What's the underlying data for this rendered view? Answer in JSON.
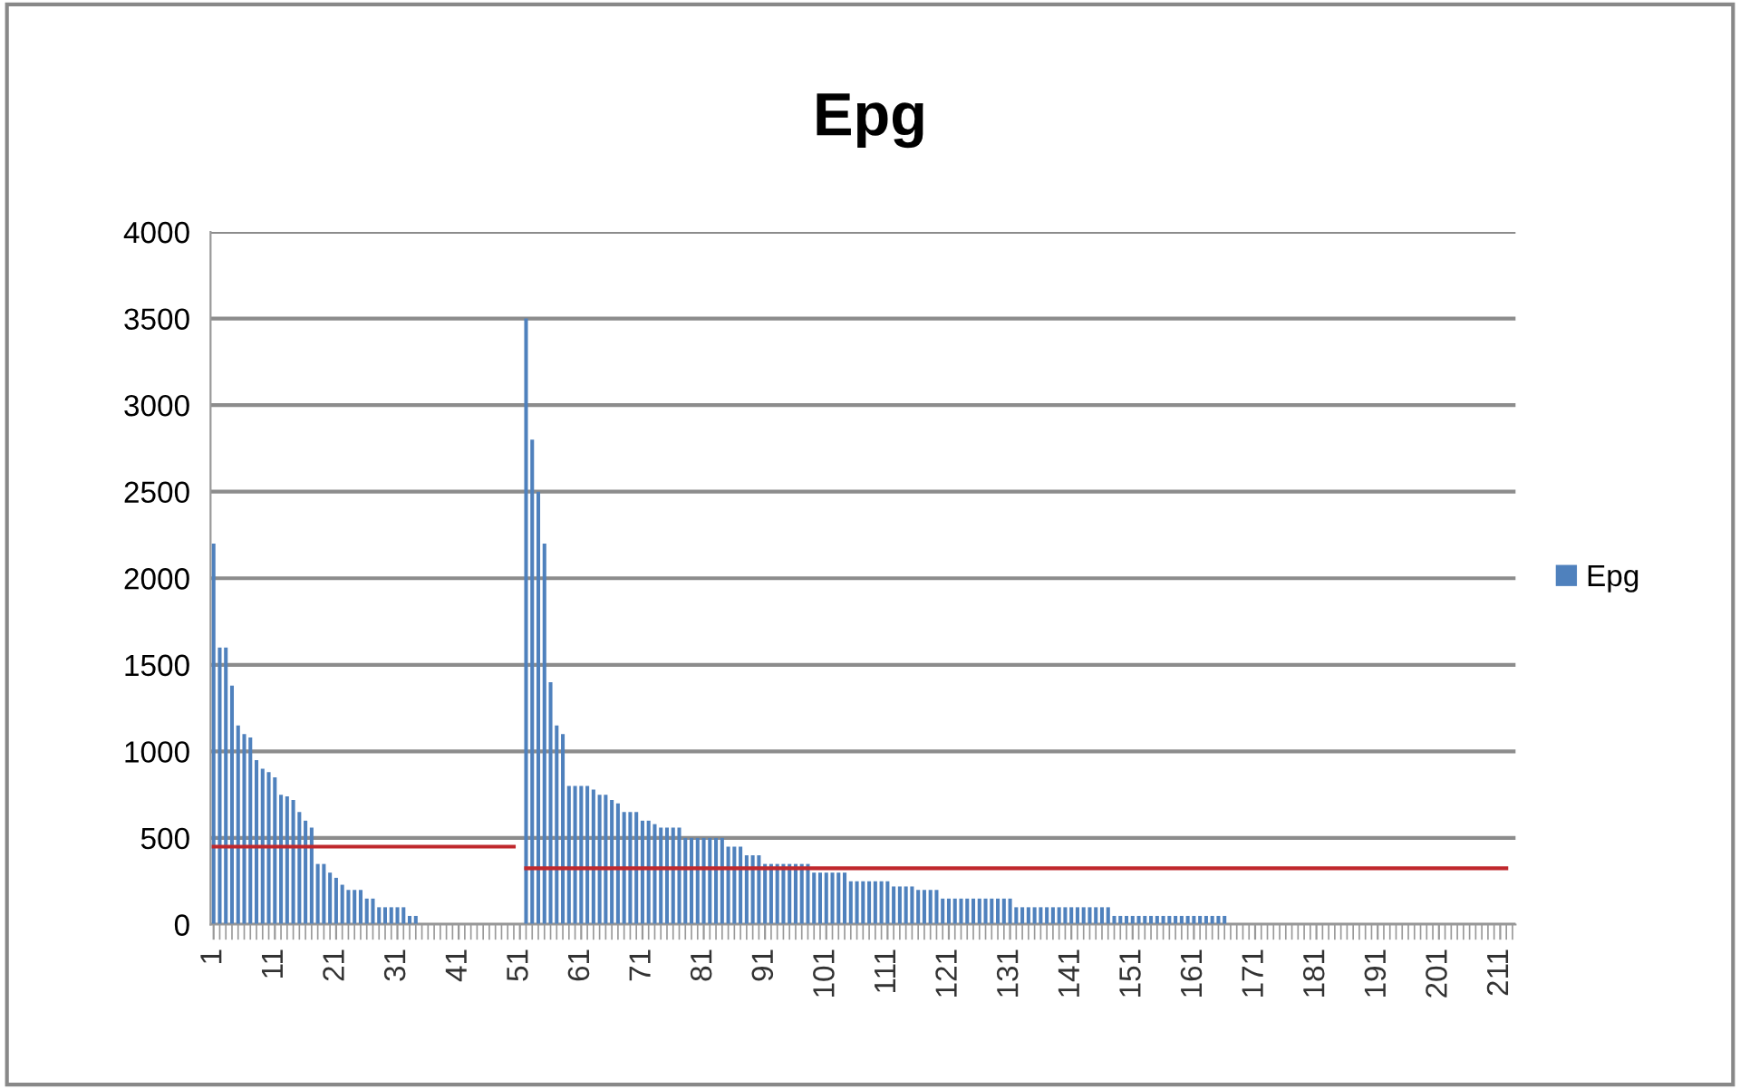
{
  "chart_data": {
    "type": "bar",
    "title": "Epg",
    "categories": [
      "1",
      null,
      null,
      null,
      null,
      null,
      null,
      null,
      null,
      null,
      "11",
      null,
      null,
      null,
      null,
      null,
      null,
      null,
      null,
      null,
      "21",
      null,
      null,
      null,
      null,
      null,
      null,
      null,
      null,
      null,
      "31",
      null,
      null,
      null,
      null,
      null,
      null,
      null,
      null,
      null,
      "41",
      null,
      null,
      null,
      null,
      null,
      null,
      null,
      null,
      null,
      "51",
      null,
      null,
      null,
      null,
      null,
      null,
      null,
      null,
      null,
      "61",
      null,
      null,
      null,
      null,
      null,
      null,
      null,
      null,
      null,
      "71",
      null,
      null,
      null,
      null,
      null,
      null,
      null,
      null,
      null,
      "81",
      null,
      null,
      null,
      null,
      null,
      null,
      null,
      null,
      null,
      "91",
      null,
      null,
      null,
      null,
      null,
      null,
      null,
      null,
      null,
      "101",
      null,
      null,
      null,
      null,
      null,
      null,
      null,
      null,
      null,
      "111",
      null,
      null,
      null,
      null,
      null,
      null,
      null,
      null,
      null,
      "121",
      null,
      null,
      null,
      null,
      null,
      null,
      null,
      null,
      null,
      "131",
      null,
      null,
      null,
      null,
      null,
      null,
      null,
      null,
      null,
      "141",
      null,
      null,
      null,
      null,
      null,
      null,
      null,
      null,
      null,
      "151",
      null,
      null,
      null,
      null,
      null,
      null,
      null,
      null,
      null,
      "161",
      null,
      null,
      null,
      null,
      null,
      null,
      null,
      null,
      null,
      "171",
      null,
      null,
      null,
      null,
      null,
      null,
      null,
      null,
      null,
      "181",
      null,
      null,
      null,
      null,
      null,
      null,
      null,
      null,
      null,
      "191",
      null,
      null,
      null,
      null,
      null,
      null,
      null,
      null,
      null,
      "201",
      null,
      null,
      null,
      null,
      null,
      null,
      null,
      null,
      null,
      "211",
      null,
      null
    ],
    "series": [
      {
        "name": "Epg",
        "color": "#4f81bd",
        "values": [
          2200,
          1600,
          1600,
          1380,
          1150,
          1100,
          1080,
          950,
          900,
          880,
          850,
          750,
          740,
          720,
          650,
          600,
          560,
          350,
          350,
          300,
          270,
          230,
          200,
          200,
          200,
          150,
          150,
          100,
          100,
          100,
          100,
          100,
          50,
          50,
          0,
          0,
          0,
          0,
          0,
          0,
          0,
          0,
          0,
          0,
          0,
          0,
          0,
          0,
          0,
          0,
          0,
          3500,
          2800,
          2500,
          2200,
          1400,
          1150,
          1100,
          800,
          800,
          800,
          800,
          780,
          750,
          750,
          720,
          700,
          650,
          650,
          650,
          600,
          600,
          580,
          560,
          560,
          560,
          560,
          500,
          500,
          500,
          500,
          500,
          500,
          500,
          450,
          450,
          450,
          400,
          400,
          400,
          350,
          350,
          350,
          350,
          350,
          350,
          350,
          350,
          300,
          300,
          300,
          300,
          300,
          300,
          250,
          250,
          250,
          250,
          250,
          250,
          250,
          220,
          220,
          220,
          220,
          200,
          200,
          200,
          200,
          150,
          150,
          150,
          150,
          150,
          150,
          150,
          150,
          150,
          150,
          150,
          150,
          100,
          100,
          100,
          100,
          100,
          100,
          100,
          100,
          100,
          100,
          100,
          100,
          100,
          100,
          100,
          100,
          50,
          50,
          50,
          50,
          50,
          50,
          50,
          50,
          50,
          50,
          50,
          50,
          50,
          50,
          50,
          50,
          50,
          50,
          50,
          0,
          0,
          0,
          0,
          0,
          0,
          0,
          0,
          0,
          0,
          0,
          0,
          0,
          0,
          0,
          0,
          0,
          0,
          0,
          0,
          0,
          0,
          0,
          0,
          0,
          0,
          0,
          0,
          0,
          0,
          0,
          0,
          0,
          0,
          0,
          0,
          0,
          0,
          0,
          0,
          0,
          0,
          0,
          0,
          0,
          0,
          0
        ]
      },
      {
        "type": "line",
        "color": "#c0282d",
        "values": [
          450,
          450,
          450,
          450,
          450,
          450,
          450,
          450,
          450,
          450,
          450,
          450,
          450,
          450,
          450,
          450,
          450,
          450,
          450,
          450,
          450,
          450,
          450,
          450,
          450,
          450,
          450,
          450,
          450,
          450,
          450,
          450,
          450,
          450,
          450,
          450,
          450,
          450,
          450,
          450,
          450,
          450,
          450,
          450,
          450,
          450,
          450,
          450,
          450,
          450,
          null,
          325,
          325,
          325,
          325,
          325,
          325,
          325,
          325,
          325,
          325,
          325,
          325,
          325,
          325,
          325,
          325,
          325,
          325,
          325,
          325,
          325,
          325,
          325,
          325,
          325,
          325,
          325,
          325,
          325,
          325,
          325,
          325,
          325,
          325,
          325,
          325,
          325,
          325,
          325,
          325,
          325,
          325,
          325,
          325,
          325,
          325,
          325,
          325,
          325,
          325,
          325,
          325,
          325,
          325,
          325,
          325,
          325,
          325,
          325,
          325,
          325,
          325,
          325,
          325,
          325,
          325,
          325,
          325,
          325,
          325,
          325,
          325,
          325,
          325,
          325,
          325,
          325,
          325,
          325,
          325,
          325,
          325,
          325,
          325,
          325,
          325,
          325,
          325,
          325,
          325,
          325,
          325,
          325,
          325,
          325,
          325,
          325,
          325,
          325,
          325,
          325,
          325,
          325,
          325,
          325,
          325,
          325,
          325,
          325,
          325,
          325,
          325,
          325,
          325,
          325,
          325,
          325,
          325,
          325,
          325,
          325,
          325,
          325,
          325,
          325,
          325,
          325,
          325,
          325,
          325,
          325,
          325,
          325,
          325,
          325,
          325,
          325,
          325,
          325,
          325,
          325,
          325,
          325,
          325,
          325,
          325,
          325,
          325,
          325,
          325,
          325,
          325,
          325,
          325,
          325,
          325,
          325,
          325,
          325,
          325,
          325,
          null
        ]
      }
    ],
    "ylim": [
      0,
      4000
    ],
    "yticks": [
      0,
      500,
      1000,
      1500,
      2000,
      2500,
      3000,
      3500,
      4000
    ],
    "grid": "y",
    "legend": "right",
    "marker": "none",
    "line_style": "solid"
  }
}
